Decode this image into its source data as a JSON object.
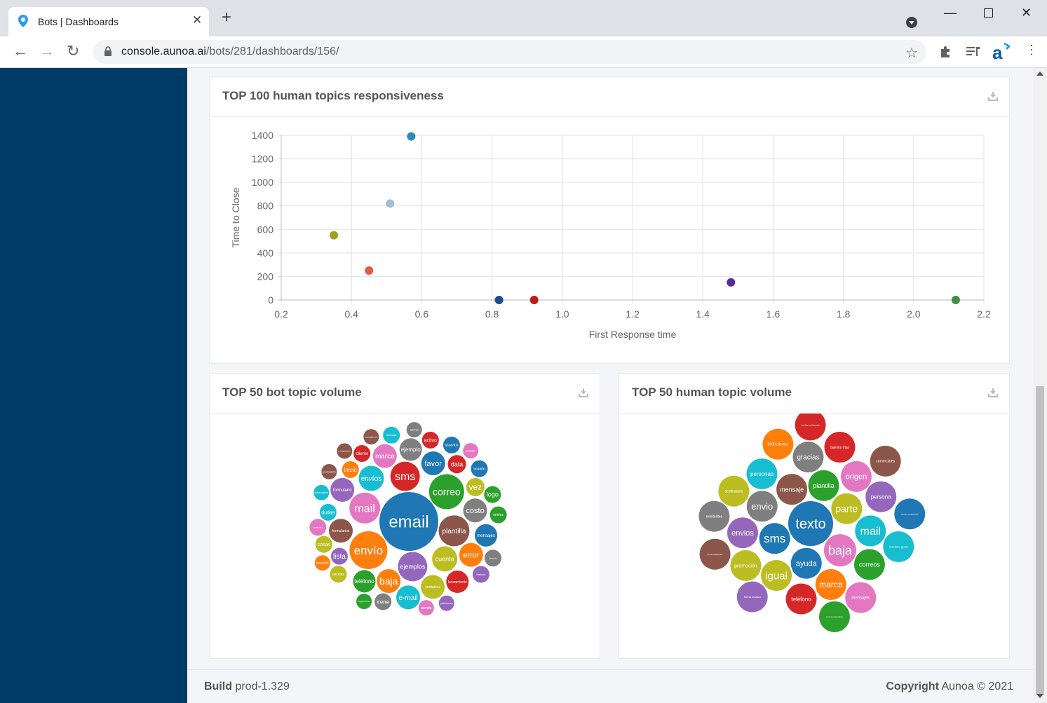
{
  "browser": {
    "tab_title": "Bots | Dashboards",
    "url_host": "console.aunoa.ai",
    "url_path": "/bots/281/dashboards/156/"
  },
  "dashboard": {
    "scatter_title": "TOP 100 human topics responsiveness",
    "bot_volume_title": "TOP 50 bot topic volume",
    "human_volume_title": "TOP 50 human topic volume"
  },
  "footer": {
    "build_label": "Build",
    "build_value": "prod-1.329",
    "copyright_label": "Copyright",
    "copyright_value": "Aunoa © 2021"
  },
  "chart_data": [
    {
      "type": "scatter",
      "title": "TOP 100 human topics responsiveness",
      "xlabel": "First Response time",
      "ylabel": "Time to Close",
      "xlim": [
        0.2,
        2.2
      ],
      "ylim": [
        0,
        1400
      ],
      "xticks": [
        "0.2",
        "0.4",
        "0.6",
        "0.8",
        "1.0",
        "1.2",
        "1.4",
        "1.6",
        "1.8",
        "2.0",
        "2.2"
      ],
      "yticks": [
        "0",
        "200",
        "400",
        "600",
        "800",
        "1000",
        "1200",
        "1400"
      ],
      "grid": true,
      "points": [
        {
          "x": 0.57,
          "y": 1390,
          "color": "#2b8cb8"
        },
        {
          "x": 0.51,
          "y": 820,
          "color": "#9ebfd6"
        },
        {
          "x": 0.35,
          "y": 550,
          "color": "#a0a021"
        },
        {
          "x": 0.45,
          "y": 250,
          "color": "#e25a4c"
        },
        {
          "x": 0.82,
          "y": 0,
          "color": "#1b4f8a"
        },
        {
          "x": 0.92,
          "y": 0,
          "color": "#c01a1a"
        },
        {
          "x": 1.48,
          "y": 150,
          "color": "#5b2a9c"
        },
        {
          "x": 2.12,
          "y": 0,
          "color": "#3f8f3f"
        }
      ]
    },
    {
      "type": "bubble",
      "title": "TOP 50 bot topic volume",
      "bubbles": [
        {
          "label": "email",
          "color": "#1f77b4",
          "r": 42,
          "fs": 24
        },
        {
          "label": "envío",
          "color": "#ff7f0e",
          "r": 27,
          "fs": 17
        },
        {
          "label": "correo",
          "color": "#2ca02c",
          "r": 25,
          "fs": 14
        },
        {
          "label": "sms",
          "color": "#d62728",
          "r": 21,
          "fs": 16
        },
        {
          "label": "mail",
          "color": "#e377c2",
          "r": 22,
          "fs": 16
        },
        {
          "label": "plantilla",
          "color": "#8c564b",
          "r": 22,
          "fs": 10
        },
        {
          "label": "ejemplos",
          "color": "#9467bd",
          "r": 21,
          "fs": 9
        },
        {
          "label": "cuenta",
          "color": "#bcbd22",
          "r": 18,
          "fs": 9
        },
        {
          "label": "baja",
          "color": "#ff7f0e",
          "r": 17,
          "fs": 14
        },
        {
          "label": "favor",
          "color": "#1f77b4",
          "r": 17,
          "fs": 11
        },
        {
          "label": "costo",
          "color": "#7f7f7f",
          "r": 17,
          "fs": 11
        },
        {
          "label": "formularios",
          "color": "#8c564b",
          "r": 17,
          "fs": 5
        },
        {
          "label": "envíos",
          "color": "#17becf",
          "r": 18,
          "fs": 10
        },
        {
          "label": "error",
          "color": "#ff7f0e",
          "r": 17,
          "fs": 11
        },
        {
          "label": "marca",
          "color": "#e377c2",
          "r": 17,
          "fs": 10
        },
        {
          "label": "contactos",
          "color": "#bcbd22",
          "r": 17,
          "fs": 5
        },
        {
          "label": "formulario",
          "color": "#9467bd",
          "r": 17,
          "fs": 6
        },
        {
          "label": "e-mail",
          "color": "#17becf",
          "r": 17,
          "fs": 10
        },
        {
          "label": "ejemplo",
          "color": "#7f7f7f",
          "r": 16,
          "fs": 8
        },
        {
          "label": "teléfono",
          "color": "#2ca02c",
          "r": 16,
          "fs": 8
        },
        {
          "label": "mensajes",
          "color": "#1f77b4",
          "r": 16,
          "fs": 6
        },
        {
          "label": "lanzamiento",
          "color": "#d62728",
          "r": 16,
          "fs": 5
        },
        {
          "label": "vez",
          "color": "#bcbd22",
          "r": 13,
          "fs": 12
        },
        {
          "label": "lista",
          "color": "#9467bd",
          "r": 12,
          "fs": 10
        },
        {
          "label": "data",
          "color": "#d62728",
          "r": 13,
          "fs": 9
        },
        {
          "label": "inicio",
          "color": "#ff7f0e",
          "r": 12,
          "fs": 8
        },
        {
          "label": "dudas",
          "color": "#17becf",
          "r": 12,
          "fs": 7
        },
        {
          "label": "cliente",
          "color": "#d62728",
          "r": 12,
          "fs": 6
        },
        {
          "label": "activo",
          "color": "#d62728",
          "r": 12,
          "fs": 7
        },
        {
          "label": "irene",
          "color": "#7f7f7f",
          "r": 12,
          "fs": 8
        },
        {
          "label": "logo",
          "color": "#2ca02c",
          "r": 12,
          "fs": 9
        },
        {
          "label": "cosas",
          "color": "#bcbd22",
          "r": 12,
          "fs": 7
        },
        {
          "label": "usuario",
          "color": "#1f77b4",
          "r": 12,
          "fs": 5
        },
        {
          "label": "escalas",
          "color": "#bcbd22",
          "r": 12,
          "fs": 5
        },
        {
          "label": "envíos",
          "color": "#2ca02c",
          "r": 12,
          "fs": 5
        },
        {
          "label": "usuarios",
          "color": "#1f77b4",
          "r": 12,
          "fs": 5
        },
        {
          "label": "historia",
          "color": "#9467bd",
          "r": 12,
          "fs": 4
        },
        {
          "label": "respuesta",
          "color": "#e377c2",
          "r": 12,
          "fs": 3
        },
        {
          "label": "atenda",
          "color": "#e377c2",
          "r": 11,
          "fs": 5
        },
        {
          "label": "informativo",
          "color": "#17becf",
          "r": 11,
          "fs": 4
        },
        {
          "label": "peticiones",
          "color": "#9467bd",
          "r": 11,
          "fs": 4
        },
        {
          "label": "mensaje",
          "color": "#17becf",
          "r": 12,
          "fs": 4
        },
        {
          "label": "seguimiento",
          "color": "#2ca02c",
          "r": 11,
          "fs": 3
        },
        {
          "label": "promoción",
          "color": "#8c564b",
          "r": 11,
          "fs": 4
        },
        {
          "label": "aternal",
          "color": "#7f7f7f",
          "r": 11,
          "fs": 4
        },
        {
          "label": "navegadores",
          "color": "#8c564b",
          "r": 11,
          "fs": 3
        },
        {
          "label": "dirección",
          "color": "#7f7f7f",
          "r": 12,
          "fs": 3
        },
        {
          "label": "pantalla",
          "color": "#e377c2",
          "r": 11,
          "fs": 4
        },
        {
          "label": "enviado",
          "color": "#ff7f0e",
          "r": 11,
          "fs": 5
        },
        {
          "label": "configuración",
          "color": "#8c564b",
          "r": 11,
          "fs": 3
        }
      ]
    },
    {
      "type": "bubble",
      "title": "TOP 50 human topic volume",
      "bubbles": [
        {
          "label": "texto",
          "color": "#1f77b4",
          "r": 32,
          "fs": 20
        },
        {
          "label": "baja",
          "color": "#e377c2",
          "r": 23,
          "fs": 18
        },
        {
          "label": "sms",
          "color": "#1f77b4",
          "r": 22,
          "fs": 17
        },
        {
          "label": "parte",
          "color": "#bcbd22",
          "r": 22,
          "fs": 14
        },
        {
          "label": "mensaje",
          "color": "#8c564b",
          "r": 22,
          "fs": 9
        },
        {
          "label": "ayuda",
          "color": "#1f77b4",
          "r": 22,
          "fs": 11
        },
        {
          "label": "plantilla",
          "color": "#2ca02c",
          "r": 22,
          "fs": 9
        },
        {
          "label": "envio",
          "color": "#7f7f7f",
          "r": 22,
          "fs": 13
        },
        {
          "label": "mail",
          "color": "#17becf",
          "r": 22,
          "fs": 16
        },
        {
          "label": "igual",
          "color": "#bcbd22",
          "r": 22,
          "fs": 15
        },
        {
          "label": "marca",
          "color": "#ff7f0e",
          "r": 22,
          "fs": 12
        },
        {
          "label": "origen",
          "color": "#e377c2",
          "r": 22,
          "fs": 11
        },
        {
          "label": "envios",
          "color": "#9467bd",
          "r": 22,
          "fs": 11
        },
        {
          "label": "gracias",
          "color": "#7f7f7f",
          "r": 22,
          "fs": 10
        },
        {
          "label": "personas",
          "color": "#17becf",
          "r": 22,
          "fs": 8
        },
        {
          "label": "correos",
          "color": "#2ca02c",
          "r": 22,
          "fs": 9
        },
        {
          "label": "persona",
          "color": "#9467bd",
          "r": 22,
          "fs": 8
        },
        {
          "label": "promoción",
          "color": "#bcbd22",
          "r": 22,
          "fs": 7
        },
        {
          "label": "teléfono",
          "color": "#d62728",
          "r": 22,
          "fs": 8
        },
        {
          "label": "destinatario",
          "color": "#bcbd22",
          "r": 22,
          "fs": 5
        },
        {
          "label": "buenos días",
          "color": "#d62728",
          "r": 22,
          "fs": 5
        },
        {
          "label": "2000 clientes",
          "color": "#ff7f0e",
          "r": 22,
          "fs": 5
        },
        {
          "label": "indicador gusto",
          "color": "#17becf",
          "r": 22,
          "fs": 4
        },
        {
          "label": "mensajes",
          "color": "#e377c2",
          "r": 22,
          "fs": 6
        },
        {
          "label": "forma masiva",
          "color": "#9467bd",
          "r": 22,
          "fs": 4
        },
        {
          "label": "remitentes",
          "color": "#7f7f7f",
          "r": 22,
          "fs": 5
        },
        {
          "label": "comerciales",
          "color": "#8c564b",
          "r": 22,
          "fs": 5
        },
        {
          "label": "cuenta corporativa",
          "color": "#1f77b4",
          "r": 22,
          "fs": 3
        },
        {
          "label": "correo corporativo",
          "color": "#2ca02c",
          "r": 22,
          "fs": 3
        },
        {
          "label": "comunicaciones",
          "color": "#8c564b",
          "r": 22,
          "fs": 3
        },
        {
          "label": "nombre configurado",
          "color": "#d62728",
          "r": 22,
          "fs": 3
        }
      ]
    }
  ]
}
